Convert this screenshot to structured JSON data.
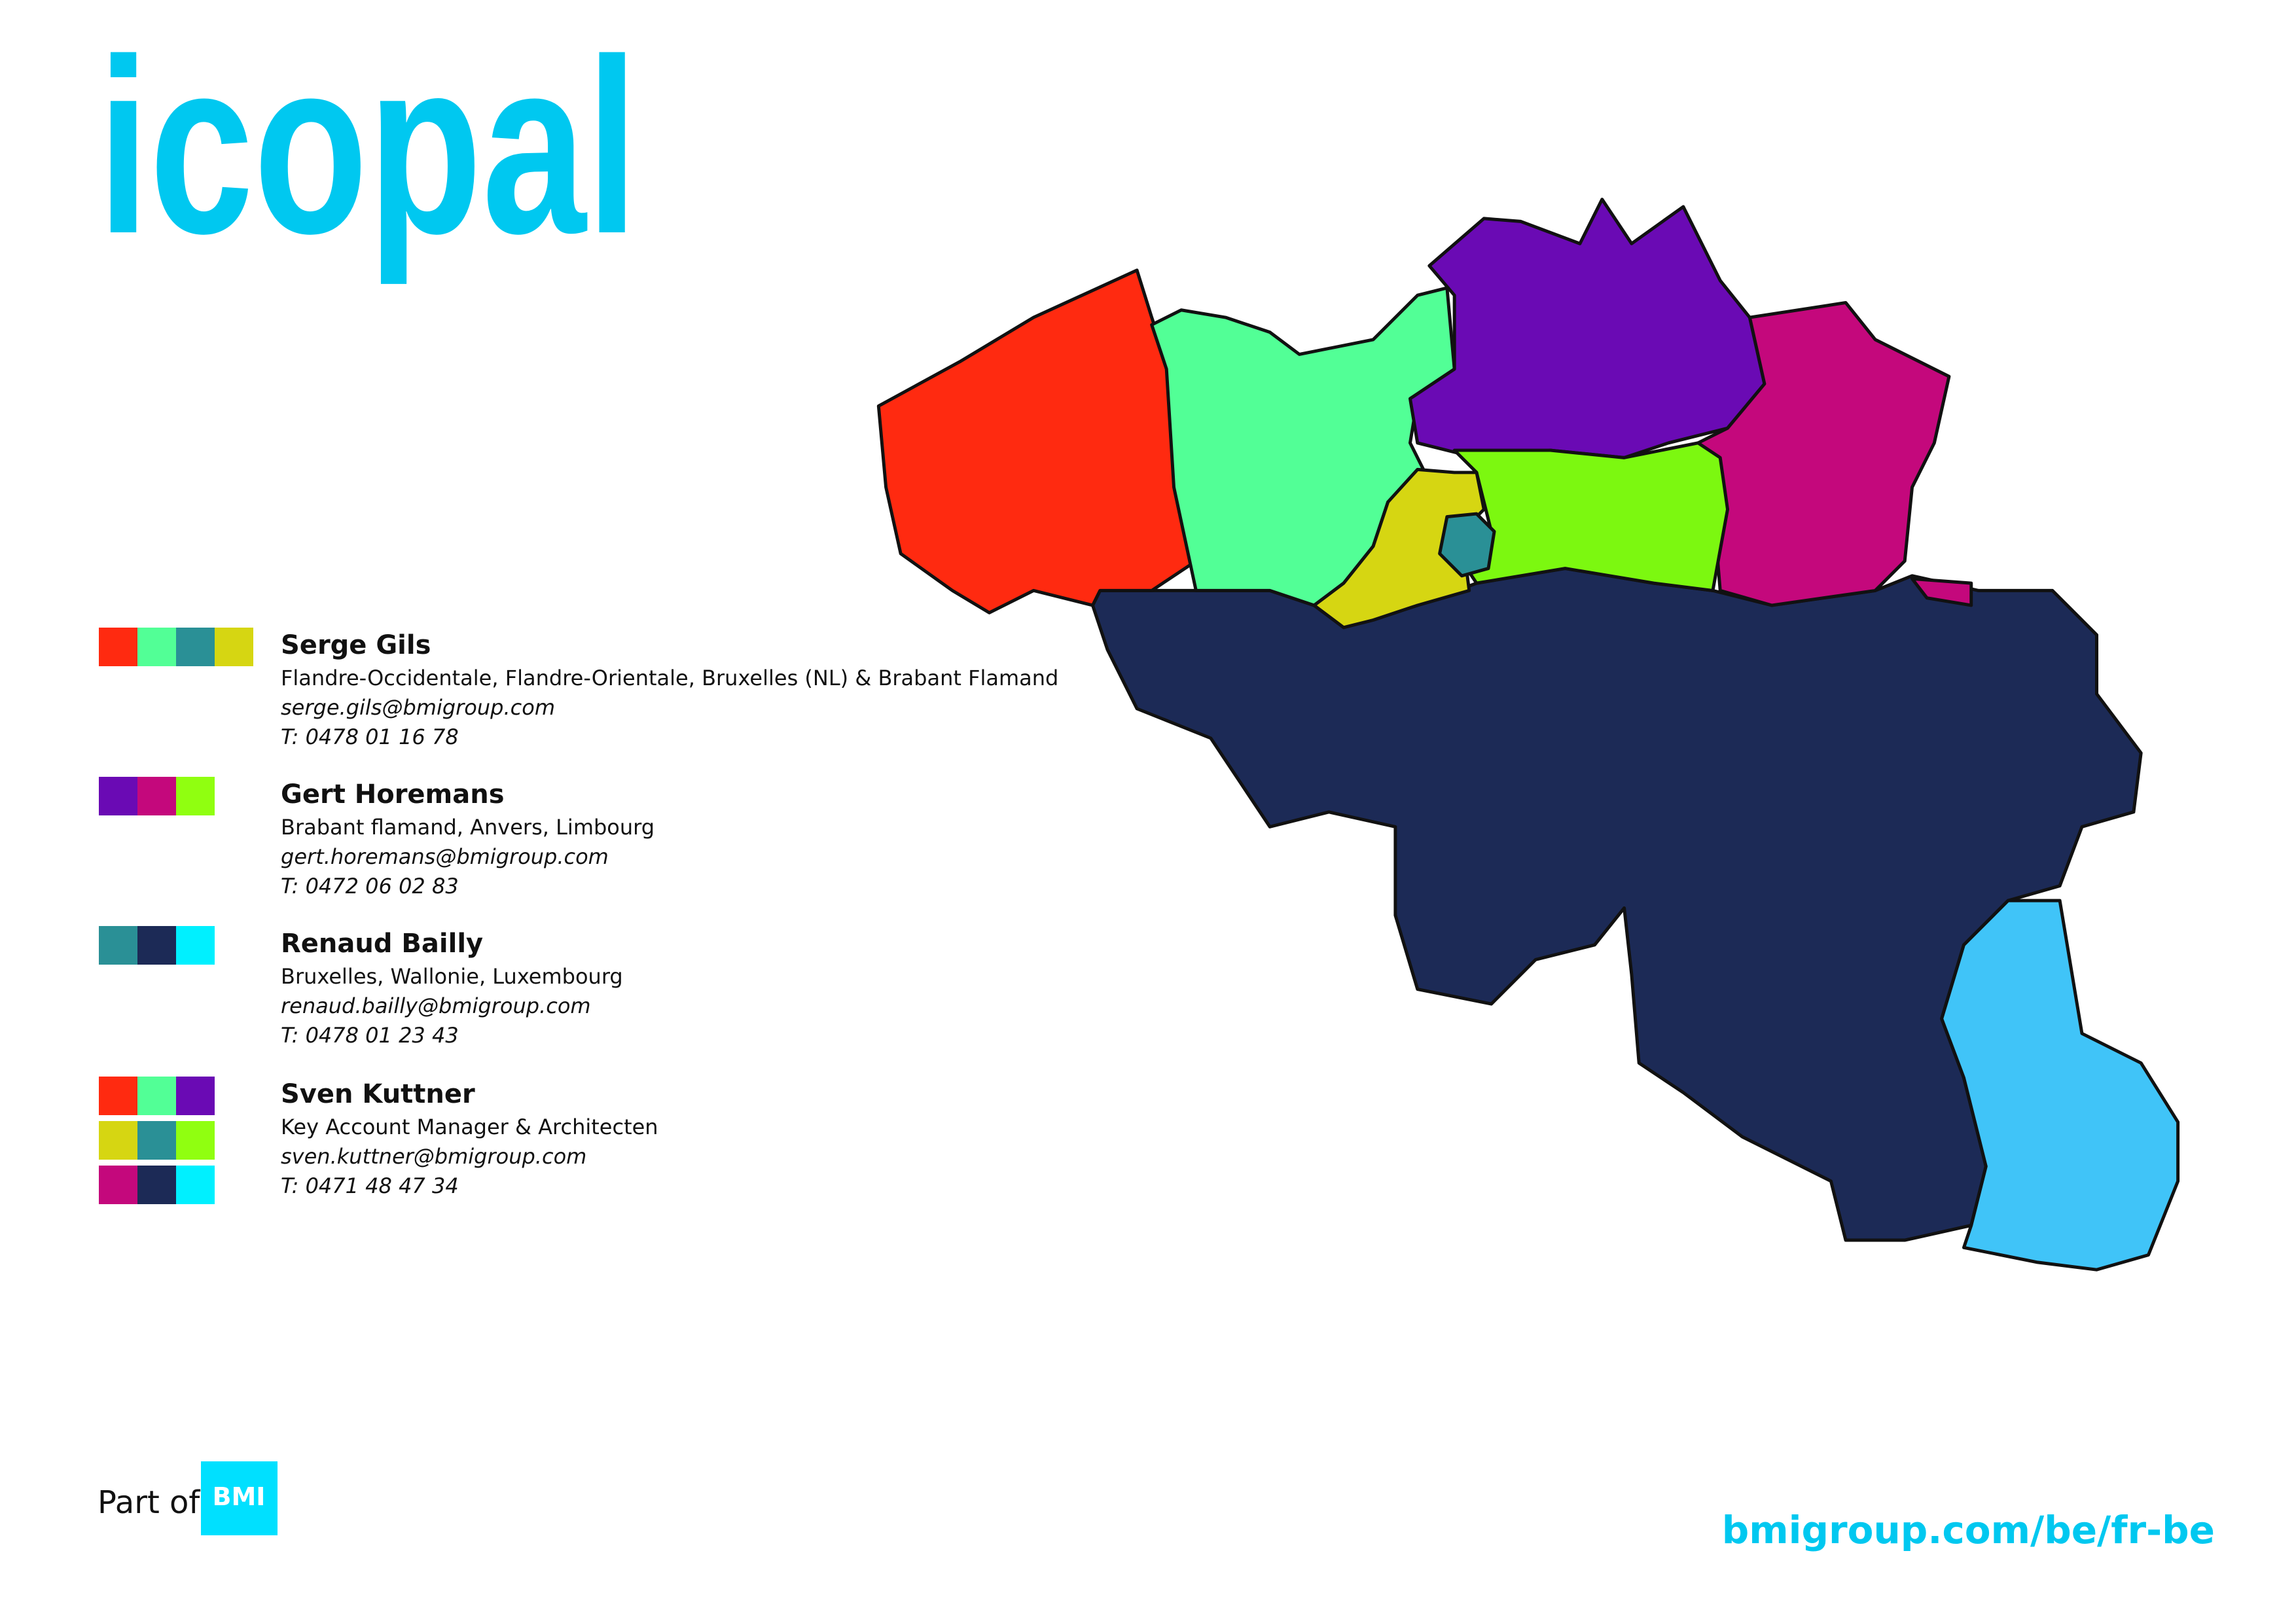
{
  "header": {
    "logo": "icopal"
  },
  "contacts": [
    {
      "name": "Serge Gils",
      "regions": "Flandre-Occidentale, Flandre-Orientale, Bruxelles (NL) & Brabant Flamand",
      "email": "serge.gils@bmigroup.com",
      "phone": "T: 0478 01 16 78",
      "colors": [
        "#ff2a10",
        "#52ff96",
        "#2a9096",
        "#d6d612"
      ]
    },
    {
      "name": "Gert Horemans",
      "regions": "Brabant flamand, Anvers, Limbourg",
      "email": "gert.horemans@bmigroup.com",
      "phone": "T: 0472 06 02 83",
      "colors": [
        "#6a0ab4",
        "#c4087c",
        "#90ff10"
      ]
    },
    {
      "name": "Renaud Bailly",
      "regions": "Bruxelles, Wallonie, Luxembourg",
      "email": "renaud.bailly@bmigroup.com",
      "phone": "T: 0478 01 23 43",
      "colors": [
        "#2a9096",
        "#1c2a56",
        "#00f0ff"
      ]
    },
    {
      "name": "Sven Kuttner",
      "regions": "Key Account Manager & Architecten",
      "email": "sven.kuttner@bmigroup.com",
      "phone": "T: 0471 48 47 34",
      "colors": [
        "#ff2a10",
        "#52ff96",
        "#6a0ab4",
        "#d6d612",
        "#2a9096",
        "#90ff10",
        "#c4087c",
        "#1c2a56",
        "#00f0ff"
      ]
    }
  ],
  "footer": {
    "part_of": "Part of",
    "brand": "BMI",
    "url": "bmigroup.com/be/fr-be"
  }
}
